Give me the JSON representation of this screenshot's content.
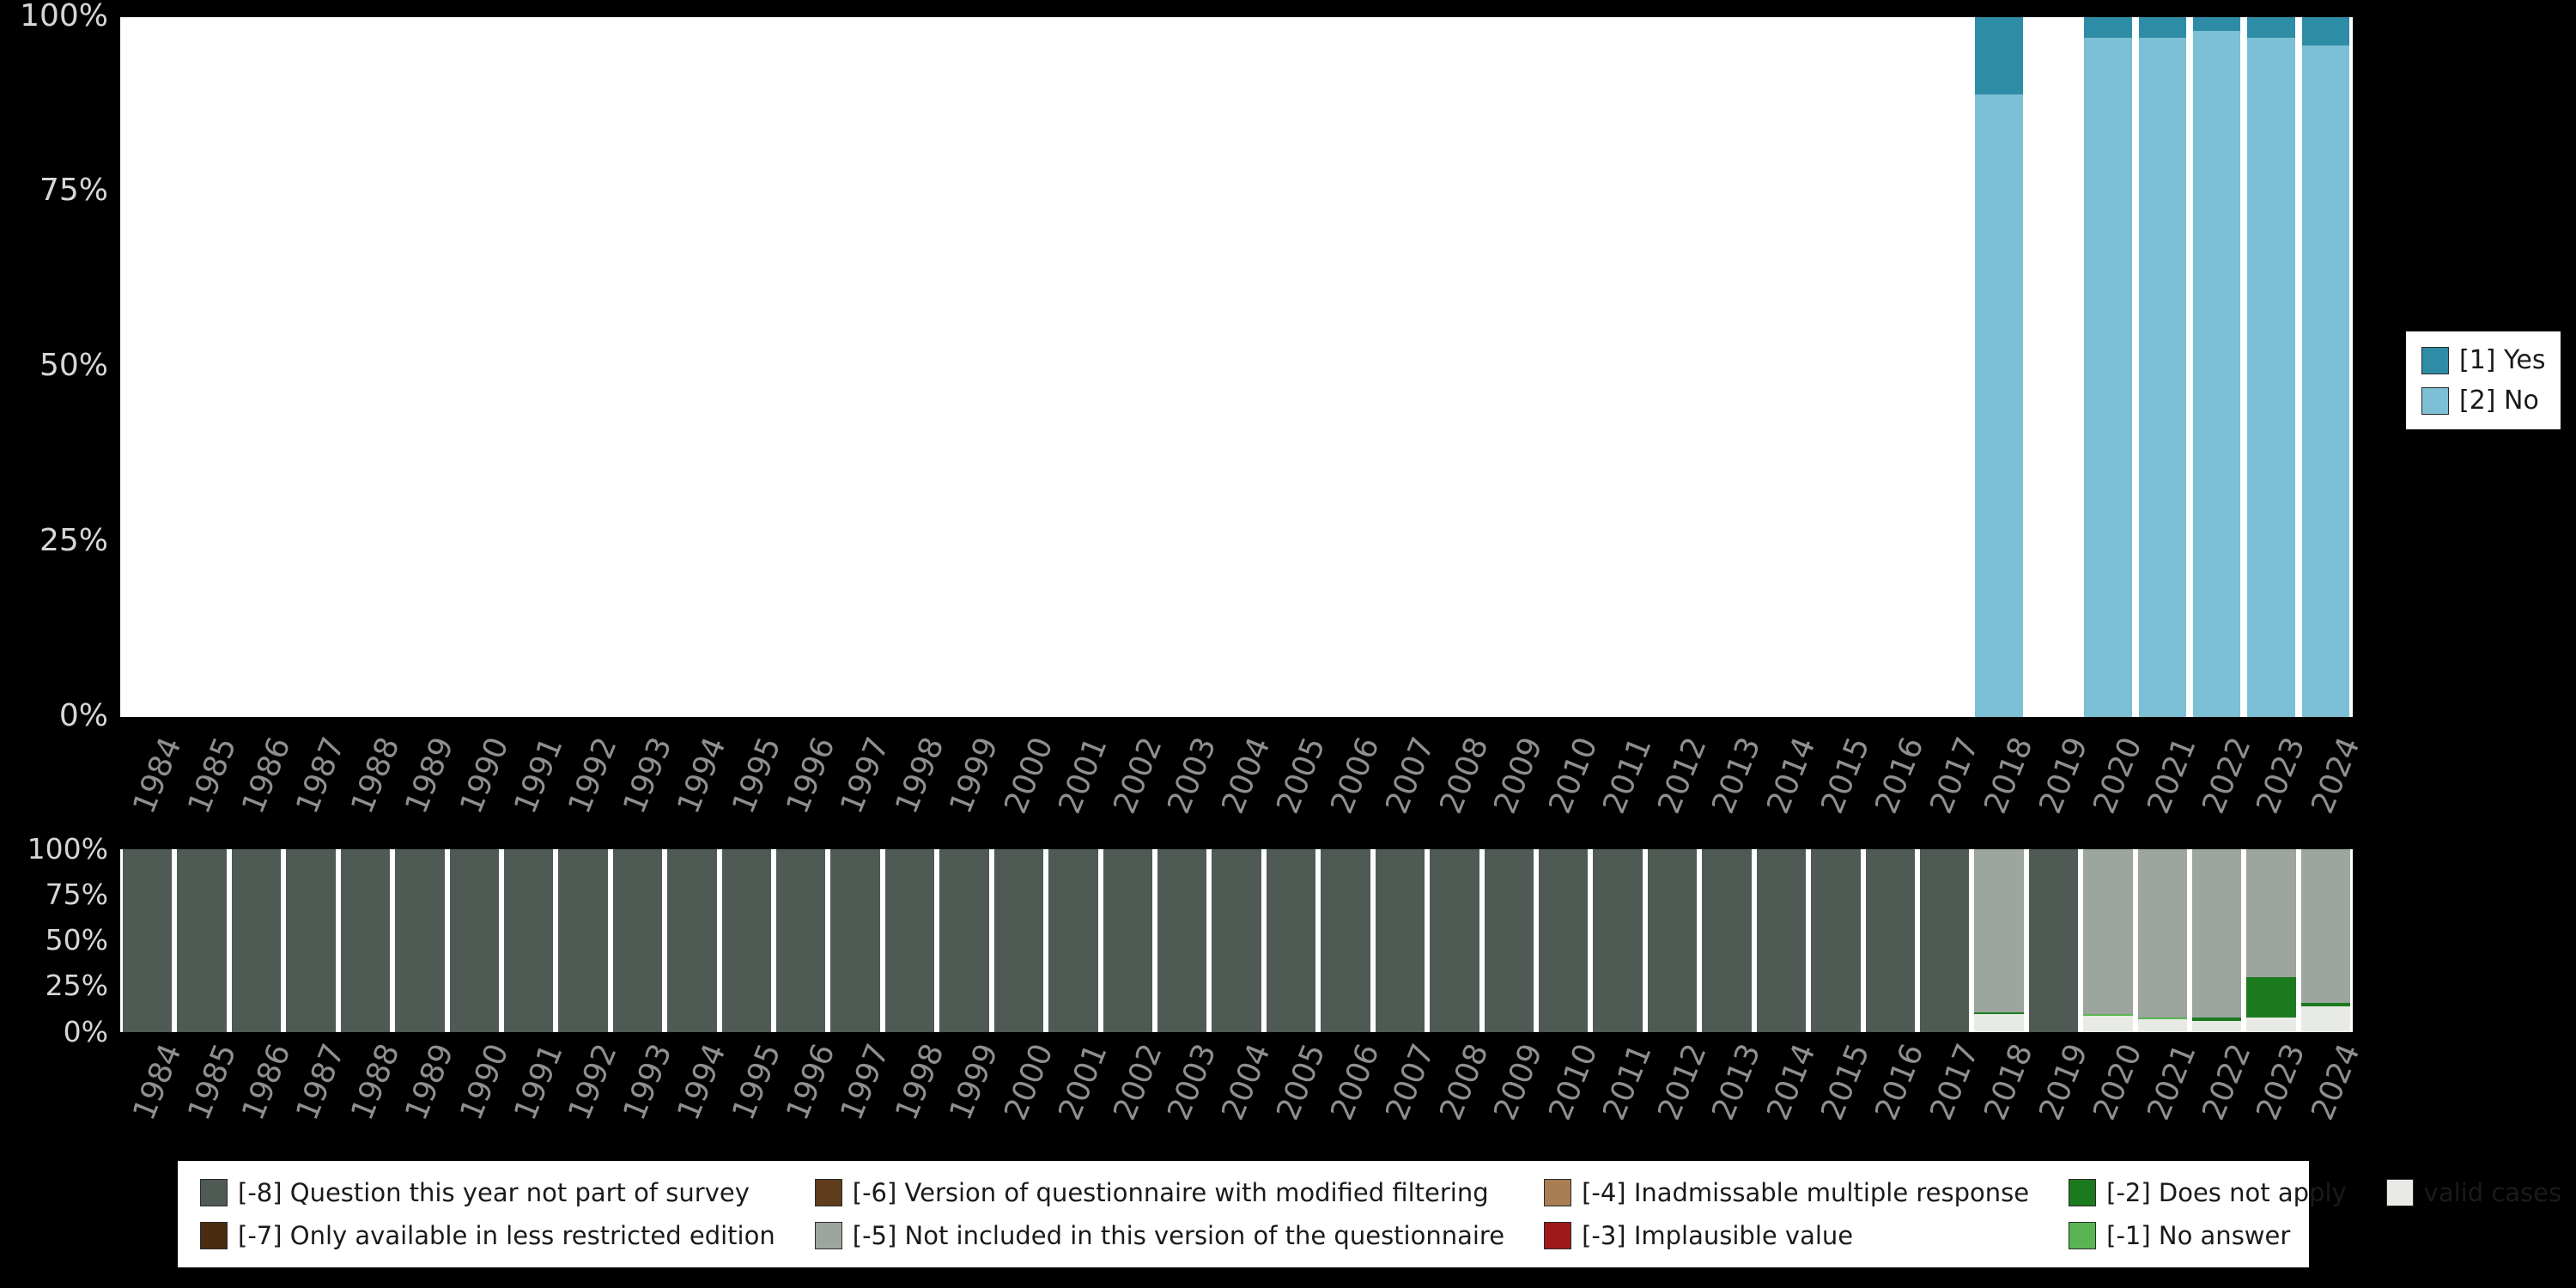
{
  "colors": {
    "yes": "#2e8ca6",
    "no": "#7dbfd5",
    "m8": "#4e5a53",
    "m7": "#4a2c10",
    "m6": "#5e3c1c",
    "m5": "#9ca59e",
    "m4": "#a87e52",
    "m3": "#9e1a1a",
    "m2": "#1c7a1e",
    "m1": "#59b553",
    "valid": "#e8ebe5"
  },
  "chart_data": [
    {
      "type": "bar",
      "subtype": "stacked-percent",
      "title": "",
      "xlabel": "",
      "ylabel": "",
      "ylim": [
        0,
        100
      ],
      "grid": false,
      "legend_position": "right",
      "yticks": [
        "100%",
        "75%",
        "50%",
        "25%",
        "0%"
      ],
      "ytick_values": [
        100,
        75,
        50,
        25,
        0
      ],
      "categories": [
        "1984",
        "1985",
        "1986",
        "1987",
        "1988",
        "1989",
        "1990",
        "1991",
        "1992",
        "1993",
        "1994",
        "1995",
        "1996",
        "1997",
        "1998",
        "1999",
        "2000",
        "2001",
        "2002",
        "2003",
        "2004",
        "2005",
        "2006",
        "2007",
        "2008",
        "2009",
        "2010",
        "2011",
        "2012",
        "2013",
        "2014",
        "2015",
        "2016",
        "2017",
        "2018",
        "2019",
        "2020",
        "2021",
        "2022",
        "2023",
        "2024"
      ],
      "series": [
        {
          "name": "[1] Yes",
          "color_key": "yes",
          "values": [
            0,
            0,
            0,
            0,
            0,
            0,
            0,
            0,
            0,
            0,
            0,
            0,
            0,
            0,
            0,
            0,
            0,
            0,
            0,
            0,
            0,
            0,
            0,
            0,
            0,
            0,
            0,
            0,
            0,
            0,
            0,
            0,
            0,
            0,
            11,
            0,
            3,
            3,
            2,
            3,
            4
          ]
        },
        {
          "name": "[2] No",
          "color_key": "no",
          "values": [
            0,
            0,
            0,
            0,
            0,
            0,
            0,
            0,
            0,
            0,
            0,
            0,
            0,
            0,
            0,
            0,
            0,
            0,
            0,
            0,
            0,
            0,
            0,
            0,
            0,
            0,
            0,
            0,
            0,
            0,
            0,
            0,
            0,
            0,
            89,
            0,
            97,
            97,
            98,
            97,
            96
          ]
        }
      ]
    },
    {
      "type": "bar",
      "subtype": "stacked-percent",
      "title": "",
      "xlabel": "",
      "ylabel": "",
      "ylim": [
        0,
        100
      ],
      "grid": false,
      "legend_position": "bottom",
      "yticks": [
        "100%",
        "75%",
        "50%",
        "25%",
        "0%"
      ],
      "ytick_values": [
        100,
        75,
        50,
        25,
        0
      ],
      "categories": [
        "1984",
        "1985",
        "1986",
        "1987",
        "1988",
        "1989",
        "1990",
        "1991",
        "1992",
        "1993",
        "1994",
        "1995",
        "1996",
        "1997",
        "1998",
        "1999",
        "2000",
        "2001",
        "2002",
        "2003",
        "2004",
        "2005",
        "2006",
        "2007",
        "2008",
        "2009",
        "2010",
        "2011",
        "2012",
        "2013",
        "2014",
        "2015",
        "2016",
        "2017",
        "2018",
        "2019",
        "2020",
        "2021",
        "2022",
        "2023",
        "2024"
      ],
      "series": [
        {
          "name": "[-8] Question this year not part of survey",
          "color_key": "m8",
          "values": [
            100,
            100,
            100,
            100,
            100,
            100,
            100,
            100,
            100,
            100,
            100,
            100,
            100,
            100,
            100,
            100,
            100,
            100,
            100,
            100,
            100,
            100,
            100,
            100,
            100,
            100,
            100,
            100,
            100,
            100,
            100,
            100,
            100,
            100,
            0,
            100,
            0,
            0,
            0,
            0,
            0
          ]
        },
        {
          "name": "[-7] Only available in less restricted edition",
          "color_key": "m7",
          "values": null
        },
        {
          "name": "[-6] Version of questionnaire with modified filtering",
          "color_key": "m6",
          "values": null
        },
        {
          "name": "[-5] Not included in this version of the questionnaire",
          "color_key": "m5",
          "values": [
            0,
            0,
            0,
            0,
            0,
            0,
            0,
            0,
            0,
            0,
            0,
            0,
            0,
            0,
            0,
            0,
            0,
            0,
            0,
            0,
            0,
            0,
            0,
            0,
            0,
            0,
            0,
            0,
            0,
            0,
            0,
            0,
            0,
            0,
            89,
            0,
            90,
            92,
            92,
            70,
            84
          ]
        },
        {
          "name": "[-4] Inadmissable multiple response",
          "color_key": "m4",
          "values": null
        },
        {
          "name": "[-3] Implausible value",
          "color_key": "m3",
          "values": null
        },
        {
          "name": "[-2] Does not apply",
          "color_key": "m2",
          "values": [
            0,
            0,
            0,
            0,
            0,
            0,
            0,
            0,
            0,
            0,
            0,
            0,
            0,
            0,
            0,
            0,
            0,
            0,
            0,
            0,
            0,
            0,
            0,
            0,
            0,
            0,
            0,
            0,
            0,
            0,
            0,
            0,
            0,
            0,
            1,
            0,
            0,
            0,
            2,
            22,
            2
          ]
        },
        {
          "name": "[-1] No answer",
          "color_key": "m1",
          "values": [
            0,
            0,
            0,
            0,
            0,
            0,
            0,
            0,
            0,
            0,
            0,
            0,
            0,
            0,
            0,
            0,
            0,
            0,
            0,
            0,
            0,
            0,
            0,
            0,
            0,
            0,
            0,
            0,
            0,
            0,
            0,
            0,
            0,
            0,
            0,
            0,
            1,
            1,
            0,
            0,
            0
          ]
        },
        {
          "name": "valid cases",
          "color_key": "valid",
          "values": [
            0,
            0,
            0,
            0,
            0,
            0,
            0,
            0,
            0,
            0,
            0,
            0,
            0,
            0,
            0,
            0,
            0,
            0,
            0,
            0,
            0,
            0,
            0,
            0,
            0,
            0,
            0,
            0,
            0,
            0,
            0,
            0,
            0,
            0,
            10,
            0,
            9,
            7,
            6,
            8,
            14
          ]
        }
      ]
    }
  ],
  "legend_top": {
    "items": [
      {
        "label": "[1] Yes",
        "color_key": "yes"
      },
      {
        "label": "[2] No",
        "color_key": "no"
      }
    ]
  },
  "legend_bottom": {
    "items": [
      {
        "label": "[-8] Question this year not part of survey",
        "color_key": "m8"
      },
      {
        "label": "[-7] Only available in less restricted edition",
        "color_key": "m7"
      },
      {
        "label": "[-6] Version of questionnaire with modified filtering",
        "color_key": "m6"
      },
      {
        "label": "[-5] Not included in this version of the questionnaire",
        "color_key": "m5"
      },
      {
        "label": "[-4] Inadmissable multiple response",
        "color_key": "m4"
      },
      {
        "label": "[-3] Implausible value",
        "color_key": "m3"
      },
      {
        "label": "[-2] Does not apply",
        "color_key": "m2"
      },
      {
        "label": "[-1] No answer",
        "color_key": "m1"
      },
      {
        "label": "valid cases",
        "color_key": "valid"
      }
    ]
  }
}
